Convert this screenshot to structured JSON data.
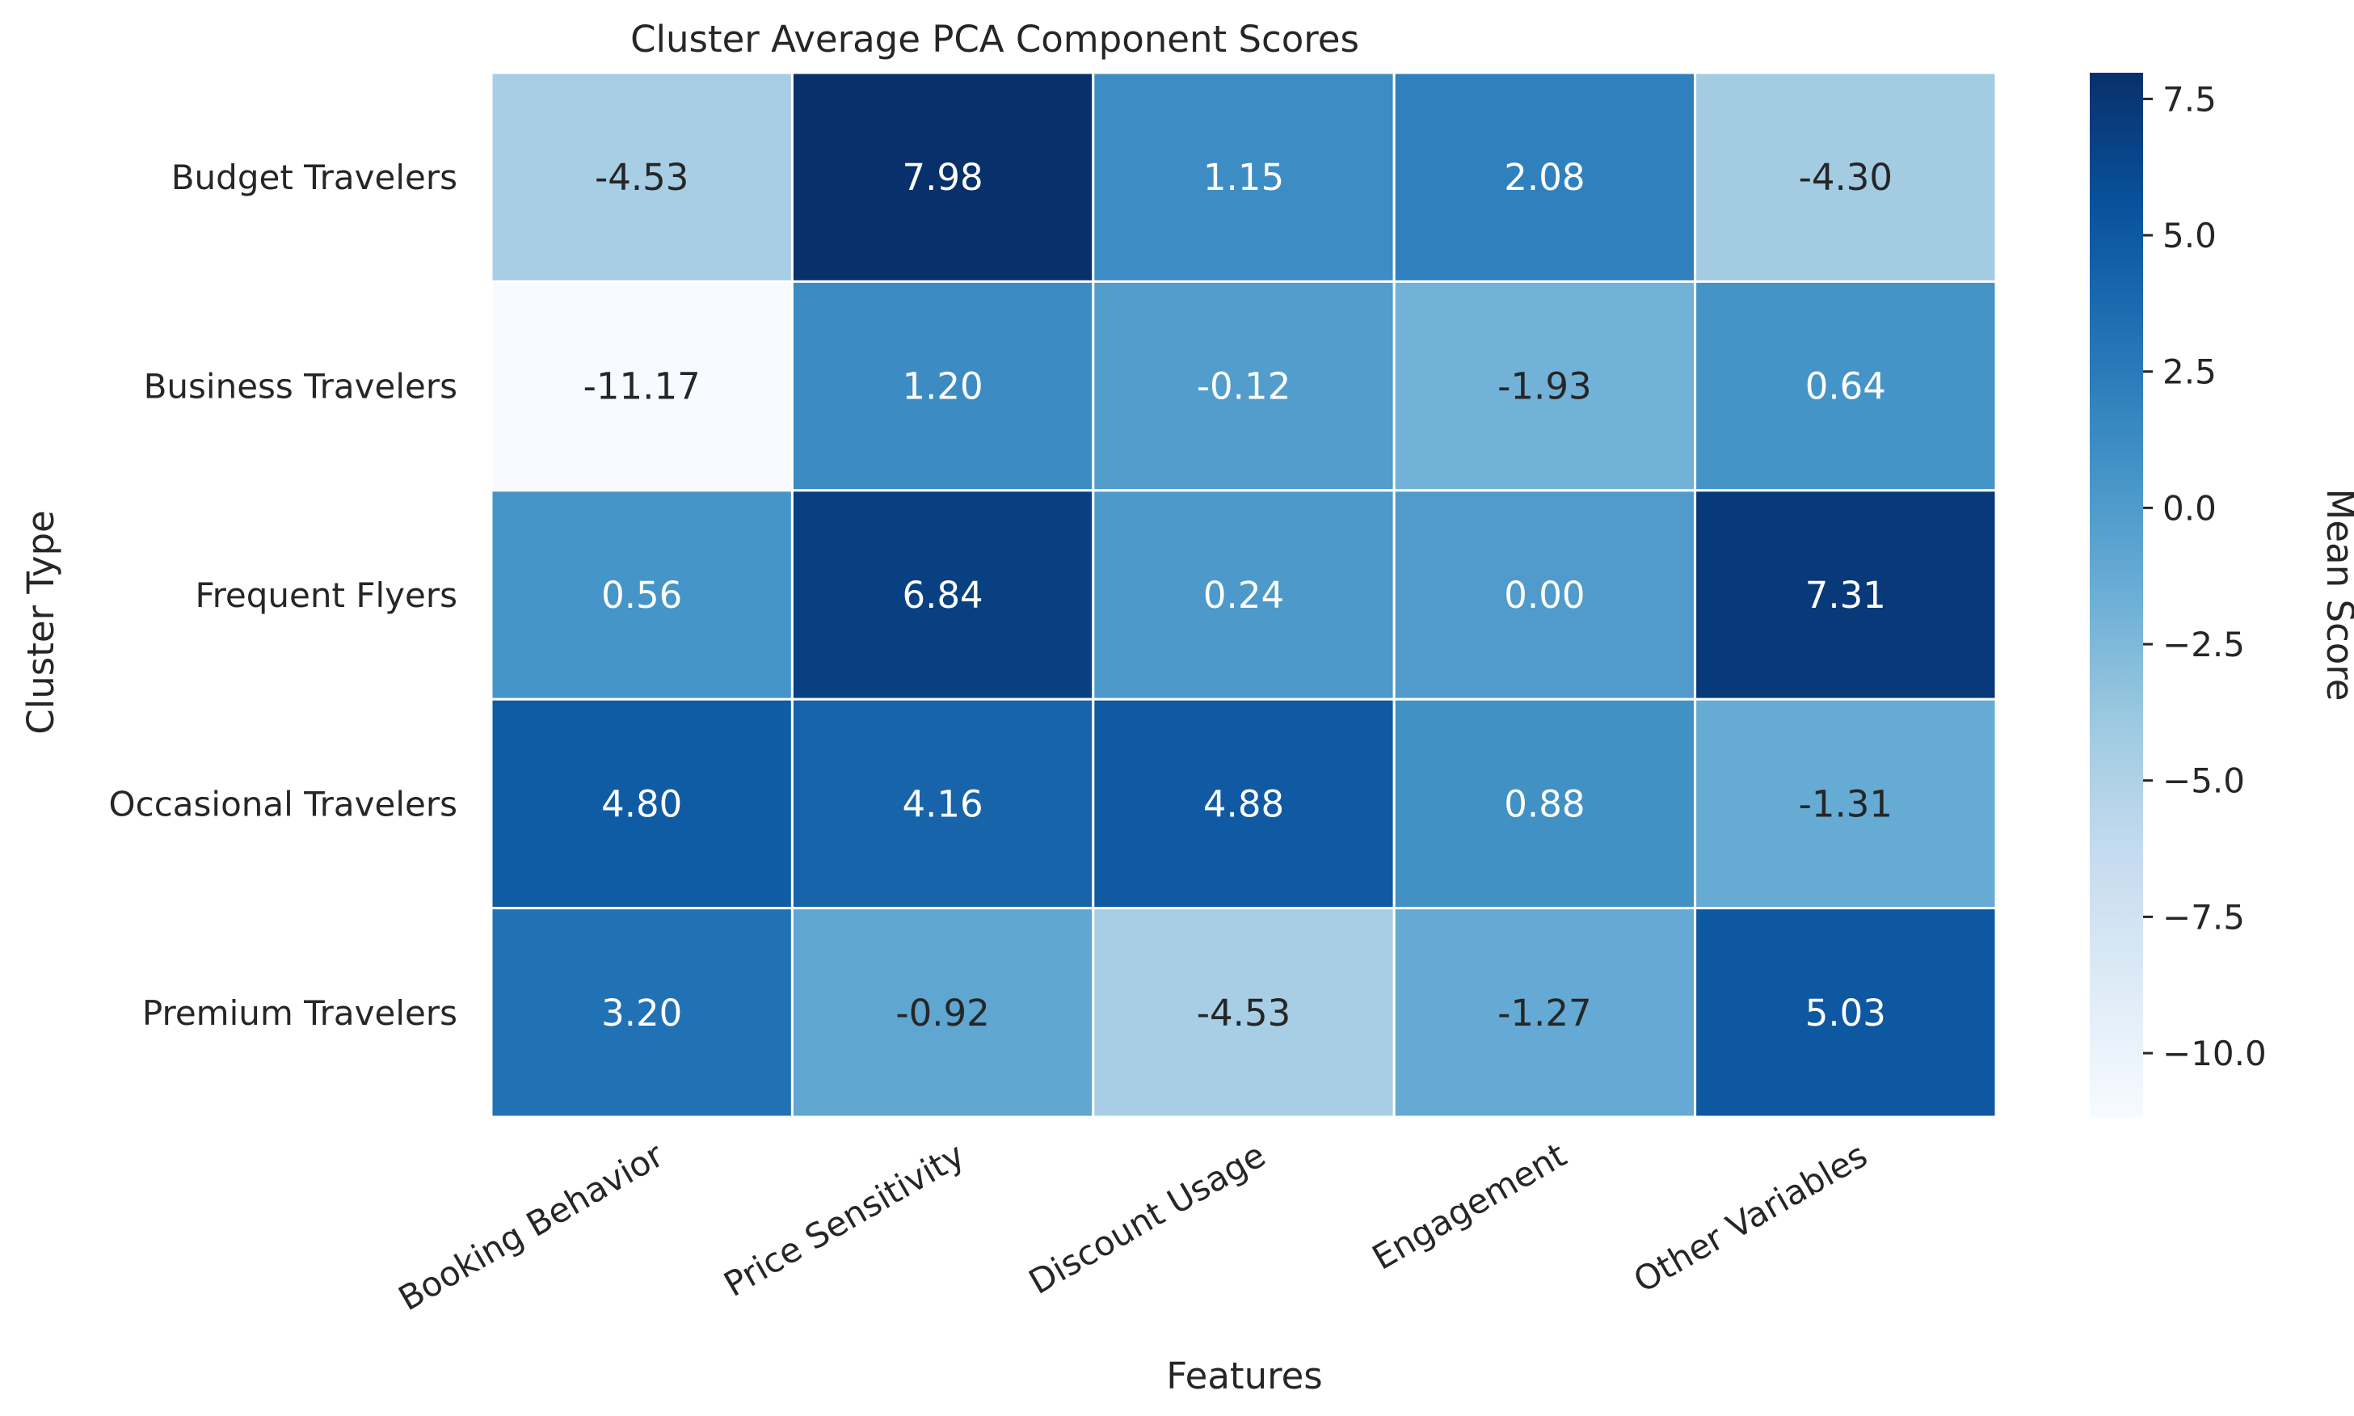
{
  "chart_data": {
    "type": "heatmap",
    "title": "Cluster Average PCA Component Scores",
    "xlabel": "Features",
    "ylabel": "Cluster Type",
    "colorbar_label": "Mean Score",
    "columns": [
      "Booking Behavior",
      "Price Sensitivity",
      "Discount Usage",
      "Engagement",
      "Other Variables"
    ],
    "rows": [
      "Budget Travelers",
      "Business Travelers",
      "Frequent Flyers",
      "Occasional Travelers",
      "Premium Travelers"
    ],
    "values": [
      [
        -4.53,
        7.98,
        1.15,
        2.08,
        -4.3
      ],
      [
        -11.17,
        1.2,
        -0.12,
        -1.93,
        0.64
      ],
      [
        0.56,
        6.84,
        0.24,
        0.0,
        7.31
      ],
      [
        4.8,
        4.16,
        4.88,
        0.88,
        -1.31
      ],
      [
        3.2,
        -0.92,
        -4.53,
        -1.27,
        5.03
      ]
    ],
    "value_labels": [
      [
        "-4.53",
        "7.98",
        "1.15",
        "2.08",
        "-4.30"
      ],
      [
        "-11.17",
        "1.20",
        "-0.12",
        "-1.93",
        "0.64"
      ],
      [
        "0.56",
        "6.84",
        "0.24",
        "0.00",
        "7.31"
      ],
      [
        "4.80",
        "4.16",
        "4.88",
        "0.88",
        "-1.31"
      ],
      [
        "3.20",
        "-0.92",
        "-4.53",
        "-1.27",
        "5.03"
      ]
    ],
    "vmin": -11.17,
    "vmax": 7.98,
    "colormap": "Blues",
    "colorbar_ticks": [
      7.5,
      5.0,
      2.5,
      0.0,
      -2.5,
      -5.0,
      -7.5,
      -10.0
    ],
    "colorbar_tick_labels": [
      "7.5",
      "5.0",
      "2.5",
      "0.0",
      "−2.5",
      "−5.0",
      "−7.5",
      "−10.0"
    ],
    "grid_lines_color": "#ffffff"
  }
}
